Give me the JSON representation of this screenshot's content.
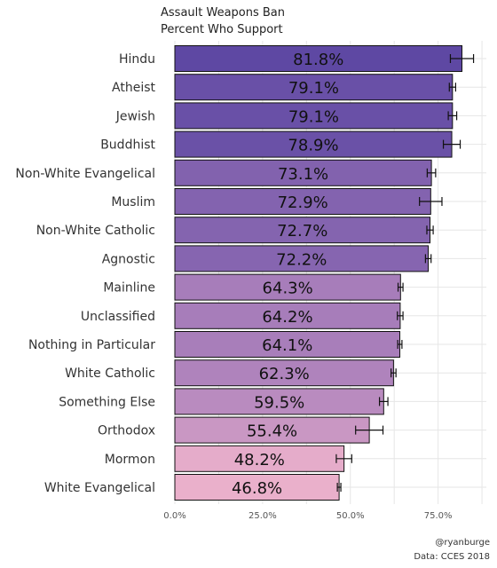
{
  "chart_data": {
    "type": "bar",
    "orientation": "horizontal",
    "title": "Assault Weapons Ban",
    "subtitle": "Percent Who Support",
    "categories": [
      "Hindu",
      "Atheist",
      "Jewish",
      "Buddhist",
      "Non-White Evangelical",
      "Muslim",
      "Non-White Catholic",
      "Agnostic",
      "Mainline",
      "Unclassified",
      "Nothing in Particular",
      "White Catholic",
      "Something Else",
      "Orthodox",
      "Mormon",
      "White Evangelical"
    ],
    "values": [
      81.8,
      79.1,
      79.1,
      78.9,
      73.1,
      72.9,
      72.7,
      72.2,
      64.3,
      64.2,
      64.1,
      62.3,
      59.5,
      55.4,
      48.2,
      46.8
    ],
    "value_labels": [
      "81.8%",
      "79.1%",
      "79.1%",
      "78.9%",
      "73.1%",
      "72.9%",
      "72.7%",
      "72.2%",
      "64.3%",
      "64.2%",
      "64.1%",
      "62.3%",
      "59.5%",
      "55.4%",
      "48.2%",
      "46.8%"
    ],
    "error_low": [
      78.5,
      78.2,
      77.9,
      76.5,
      71.9,
      69.7,
      71.8,
      71.4,
      63.6,
      63.4,
      63.5,
      61.6,
      58.3,
      51.5,
      46.0,
      46.3
    ],
    "error_high": [
      85.1,
      80.0,
      80.3,
      81.3,
      74.3,
      76.1,
      73.6,
      73.0,
      65.0,
      65.0,
      64.7,
      63.0,
      60.7,
      59.3,
      50.4,
      47.3
    ],
    "xlim": [
      0,
      90
    ],
    "x_ticks": [
      0,
      25,
      50,
      75
    ],
    "x_tick_labels": [
      "0.0%",
      "25.0%",
      "50.0%",
      "75.0%"
    ],
    "xlabel": "",
    "ylabel": "",
    "grid": true,
    "legend": "none",
    "colors": {
      "high": "#5e48a3",
      "mid": "#a77dba",
      "low": "#eab0cb",
      "bar_outline": "#111111",
      "error_bar": "#111111",
      "grid": "#e6e6e6"
    },
    "caption": [
      "@ryanburge",
      "Data: CCES 2018"
    ]
  }
}
